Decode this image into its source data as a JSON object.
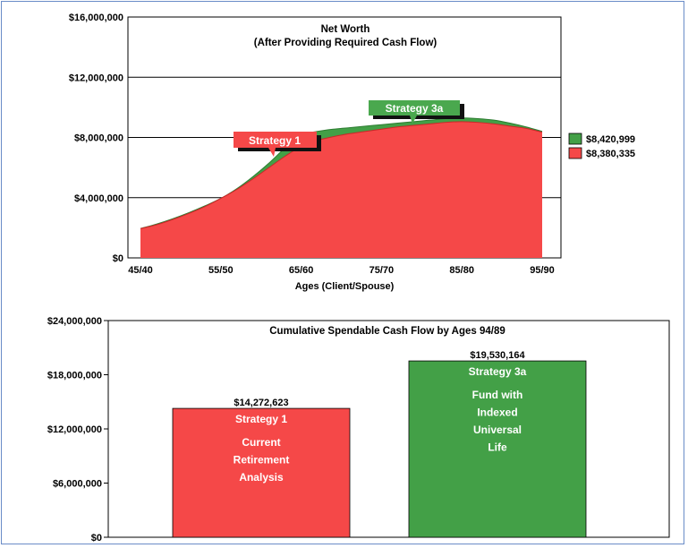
{
  "chart_data": [
    {
      "type": "area",
      "title": "Net Worth",
      "subtitle": "(After Providing Required Cash Flow)",
      "xlabel": "Ages (Client/Spouse)",
      "categories": [
        "45/40",
        "55/50",
        "65/60",
        "75/70",
        "85/80",
        "95/90"
      ],
      "ylim": [
        0,
        16000000
      ],
      "yticks": [
        "$16,000,000",
        "$12,000,000",
        "$8,000,000",
        "$4,000,000",
        "$0"
      ],
      "grid": true,
      "legend_position": "right",
      "x": [
        45,
        47,
        49,
        51,
        53,
        55,
        57,
        59,
        61,
        63,
        65,
        67,
        69,
        71,
        73,
        75,
        77,
        79,
        81,
        83,
        85,
        87,
        89,
        91,
        93,
        95
      ],
      "series": [
        {
          "name": "Strategy 3a",
          "color": "#43a047",
          "legend_value": "$8,420,999",
          "callout": "Strategy 3a",
          "values": [
            1950000,
            2250000,
            2600000,
            3000000,
            3450000,
            3950000,
            4600000,
            5400000,
            6300000,
            7300000,
            8150000,
            8400000,
            8550000,
            8650000,
            8750000,
            8850000,
            8950000,
            9050000,
            9150000,
            9250000,
            9300000,
            9250000,
            9150000,
            8950000,
            8700000,
            8400000
          ]
        },
        {
          "name": "Strategy 1",
          "color": "#f54848",
          "legend_value": "$8,380,335",
          "callout": "Strategy 1",
          "values": [
            1950000,
            2200000,
            2550000,
            2950000,
            3400000,
            3950000,
            4550000,
            5250000,
            6000000,
            6750000,
            7400000,
            7800000,
            8050000,
            8250000,
            8400000,
            8550000,
            8700000,
            8800000,
            8900000,
            9000000,
            9050000,
            9000000,
            8900000,
            8750000,
            8600000,
            8350000
          ]
        }
      ]
    },
    {
      "type": "bar",
      "title": "Cumulative Spendable Cash Flow by Ages 94/89",
      "ylim": [
        0,
        24000000
      ],
      "yticks": [
        "$24,000,000",
        "$18,000,000",
        "$12,000,000",
        "$6,000,000",
        "$0"
      ],
      "grid": false,
      "categories": [
        "Strategy 1",
        "Strategy 3a"
      ],
      "values": [
        14272623,
        19530164
      ],
      "value_labels": [
        "$14,272,623",
        "$19,530,164"
      ],
      "bars": [
        {
          "name": "Strategy 1",
          "color": "#f54848",
          "description": [
            "Current",
            "Retirement",
            "Analysis"
          ]
        },
        {
          "name": "Strategy 3a",
          "color": "#43a047",
          "description": [
            "Fund with",
            "Indexed",
            "Universal",
            "Life"
          ]
        }
      ]
    }
  ]
}
